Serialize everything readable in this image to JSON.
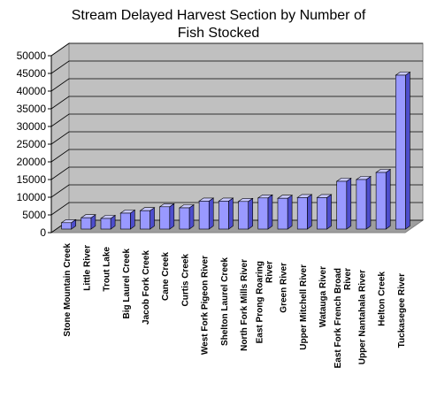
{
  "chart_data": {
    "type": "bar",
    "title": "Stream Delayed Harvest Section by Number of\nFish Stocked",
    "xlabel": "",
    "ylabel": "",
    "ylim": [
      0,
      50000
    ],
    "yticks": [
      0,
      5000,
      10000,
      15000,
      20000,
      25000,
      30000,
      35000,
      40000,
      45000,
      50000
    ],
    "grid": true,
    "legend": "none",
    "style": "3d-column",
    "categories": [
      "Stone Mountain Creek",
      "Little River",
      "Trout Lake",
      "Big Laurel Creek",
      "Jacob Fork Creek",
      "Cane Creek",
      "Curtis Creek",
      "West Fork Pigeon River",
      "Shelton Laurel Creek",
      "North Fork Mills River",
      "East Prong Roaring River",
      "Green River",
      "Upper Mitchell River",
      "Watauga River",
      "East Fork French Broad River",
      "Upper Nantahala River",
      "Helton Creek",
      "Tuckasegee River"
    ],
    "values": [
      1800,
      3200,
      3000,
      4500,
      5200,
      6300,
      6000,
      7900,
      7900,
      7800,
      8800,
      8700,
      8900,
      8900,
      13500,
      14000,
      16000,
      43500
    ],
    "colors": {
      "bar_front": "#9999ff",
      "bar_side": "#4d4dcc",
      "bar_top": "#c8c8ff",
      "wall": "#c0c0c0",
      "floor": "#9e9e9e",
      "grid": "#000000"
    }
  }
}
